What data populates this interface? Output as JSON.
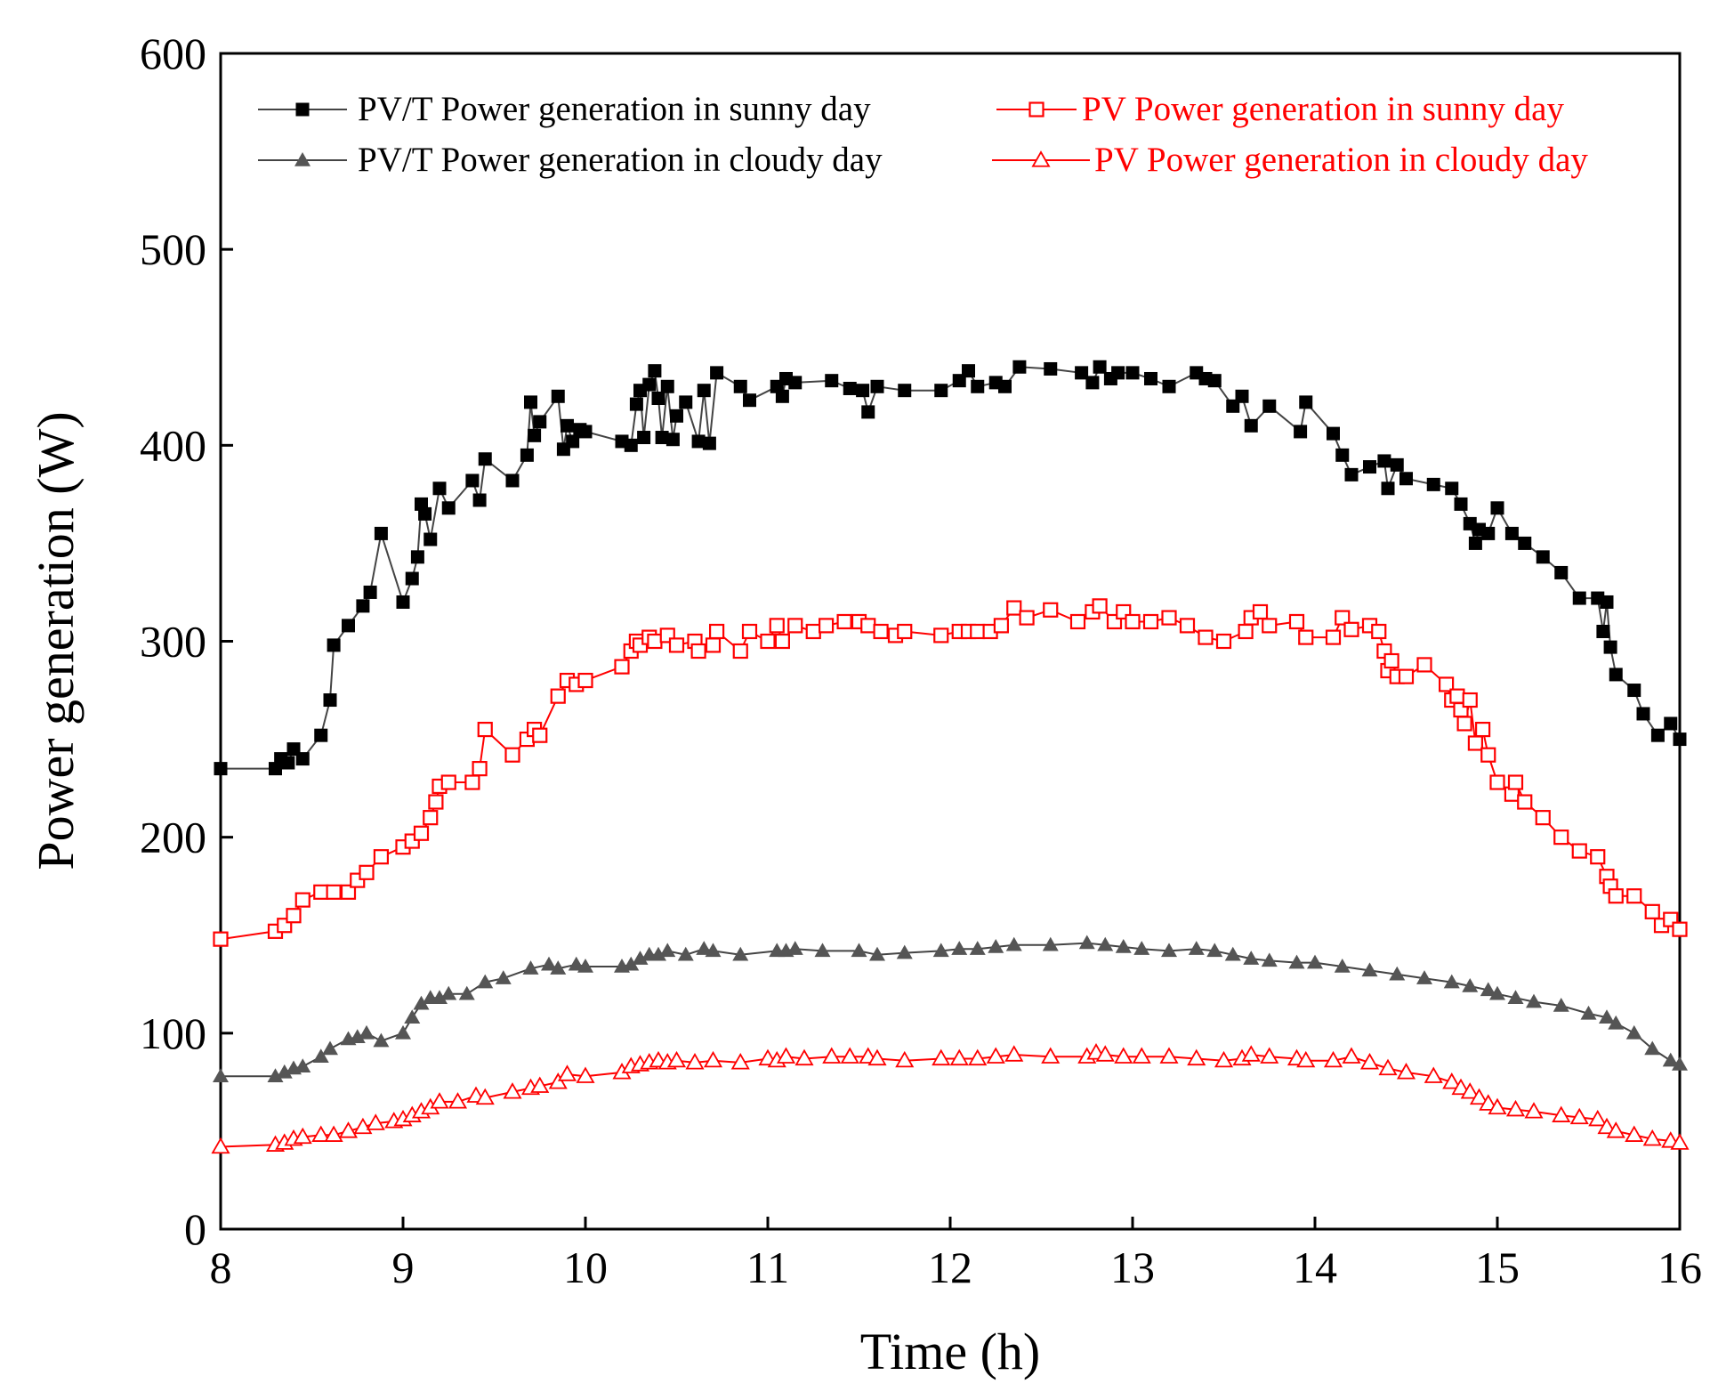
{
  "chart_data": {
    "type": "line",
    "title": "",
    "xlabel": "Time (h)",
    "ylabel": "Power generation (W)",
    "xlim": [
      8,
      16
    ],
    "ylim": [
      0,
      600
    ],
    "xticks": [
      8,
      9,
      10,
      11,
      12,
      13,
      14,
      15,
      16
    ],
    "yticks": [
      0,
      100,
      200,
      300,
      400,
      500,
      600
    ],
    "xtick_labels": [
      "8",
      "9",
      "10",
      "11",
      "12",
      "13",
      "14",
      "15",
      "16"
    ],
    "ytick_labels": [
      "0",
      "100",
      "200",
      "300",
      "400",
      "500",
      "600"
    ],
    "grid": false,
    "legend_position": "top",
    "series": [
      {
        "name": "PV/T Power generation in sunny day",
        "color": "#000000",
        "line_color": "#444444",
        "marker": "filled-square",
        "x": [
          8.0,
          8.3,
          8.33,
          8.37,
          8.4,
          8.45,
          8.55,
          8.6,
          8.62,
          8.7,
          8.78,
          8.82,
          8.88,
          9.0,
          9.05,
          9.08,
          9.1,
          9.12,
          9.15,
          9.2,
          9.25,
          9.38,
          9.42,
          9.45,
          9.6,
          9.68,
          9.7,
          9.72,
          9.75,
          9.85,
          9.88,
          9.9,
          9.93,
          9.97,
          10.0,
          10.2,
          10.25,
          10.28,
          10.3,
          10.32,
          10.35,
          10.38,
          10.4,
          10.42,
          10.45,
          10.48,
          10.5,
          10.55,
          10.62,
          10.65,
          10.68,
          10.72,
          10.85,
          10.9,
          11.05,
          11.08,
          11.1,
          11.15,
          11.35,
          11.45,
          11.52,
          11.55,
          11.6,
          11.75,
          11.95,
          12.05,
          12.1,
          12.15,
          12.25,
          12.3,
          12.38,
          12.55,
          12.72,
          12.78,
          12.82,
          12.88,
          12.92,
          13.0,
          13.1,
          13.2,
          13.35,
          13.4,
          13.45,
          13.55,
          13.6,
          13.65,
          13.75,
          13.92,
          13.95,
          14.1,
          14.15,
          14.2,
          14.3,
          14.38,
          14.4,
          14.45,
          14.5,
          14.65,
          14.75,
          14.8,
          14.85,
          14.88,
          14.9,
          14.95,
          15.0,
          15.08,
          15.15,
          15.25,
          15.35,
          15.45,
          15.55,
          15.58,
          15.6,
          15.62,
          15.65,
          15.75,
          15.8,
          15.88,
          15.95,
          16.0
        ],
        "y": [
          235,
          235,
          240,
          238,
          245,
          240,
          252,
          270,
          298,
          308,
          318,
          325,
          355,
          320,
          332,
          343,
          370,
          365,
          352,
          378,
          368,
          382,
          372,
          393,
          382,
          395,
          422,
          405,
          412,
          425,
          398,
          410,
          402,
          408,
          407,
          402,
          400,
          421,
          428,
          404,
          431,
          438,
          424,
          404,
          430,
          403,
          415,
          422,
          402,
          428,
          401,
          437,
          430,
          423,
          430,
          425,
          434,
          432,
          433,
          429,
          428,
          417,
          430,
          428,
          428,
          433,
          438,
          430,
          432,
          430,
          440,
          439,
          437,
          432,
          440,
          434,
          437,
          437,
          434,
          430,
          437,
          434,
          433,
          420,
          425,
          410,
          420,
          407,
          422,
          406,
          395,
          385,
          389,
          392,
          378,
          390,
          383,
          380,
          378,
          370,
          360,
          350,
          357,
          355,
          368,
          355,
          350,
          343,
          335,
          322,
          322,
          305,
          320,
          297,
          283,
          275,
          263,
          252,
          258,
          250
        ]
      },
      {
        "name": "PV Power generation in sunny day",
        "color": "#ff0000",
        "line_color": "#ff0000",
        "marker": "open-square",
        "x": [
          8.0,
          8.3,
          8.35,
          8.4,
          8.45,
          8.55,
          8.62,
          8.7,
          8.75,
          8.8,
          8.88,
          9.0,
          9.05,
          9.1,
          9.15,
          9.18,
          9.2,
          9.25,
          9.38,
          9.42,
          9.45,
          9.6,
          9.68,
          9.72,
          9.75,
          9.85,
          9.9,
          9.95,
          10.0,
          10.2,
          10.25,
          10.28,
          10.3,
          10.35,
          10.38,
          10.45,
          10.5,
          10.6,
          10.62,
          10.7,
          10.72,
          10.85,
          10.9,
          11.0,
          11.05,
          11.08,
          11.15,
          11.25,
          11.32,
          11.42,
          11.5,
          11.55,
          11.62,
          11.7,
          11.75,
          11.95,
          12.05,
          12.1,
          12.15,
          12.22,
          12.28,
          12.35,
          12.42,
          12.55,
          12.7,
          12.78,
          12.82,
          12.9,
          12.95,
          13.0,
          13.1,
          13.2,
          13.3,
          13.4,
          13.5,
          13.62,
          13.65,
          13.7,
          13.75,
          13.9,
          13.95,
          14.1,
          14.15,
          14.2,
          14.3,
          14.35,
          14.38,
          14.4,
          14.42,
          14.45,
          14.5,
          14.6,
          14.72,
          14.75,
          14.78,
          14.8,
          14.82,
          14.85,
          14.88,
          14.92,
          14.95,
          15.0,
          15.08,
          15.1,
          15.15,
          15.25,
          15.35,
          15.45,
          15.55,
          15.6,
          15.62,
          15.65,
          15.75,
          15.85,
          15.9,
          15.95,
          16.0
        ],
        "y": [
          148,
          152,
          155,
          160,
          168,
          172,
          172,
          172,
          178,
          182,
          190,
          195,
          198,
          202,
          210,
          218,
          226,
          228,
          228,
          235,
          255,
          242,
          250,
          255,
          252,
          272,
          280,
          278,
          280,
          287,
          295,
          300,
          298,
          302,
          300,
          303,
          298,
          300,
          295,
          298,
          305,
          295,
          305,
          300,
          308,
          300,
          308,
          305,
          308,
          310,
          310,
          308,
          305,
          303,
          305,
          303,
          305,
          305,
          305,
          305,
          308,
          317,
          312,
          316,
          310,
          315,
          318,
          310,
          315,
          310,
          310,
          312,
          308,
          302,
          300,
          305,
          312,
          315,
          308,
          310,
          302,
          302,
          312,
          306,
          308,
          305,
          295,
          285,
          290,
          282,
          282,
          288,
          278,
          270,
          272,
          265,
          258,
          270,
          248,
          255,
          242,
          228,
          222,
          228,
          218,
          210,
          200,
          193,
          190,
          180,
          175,
          170,
          170,
          162,
          155,
          158,
          153
        ]
      },
      {
        "name": "PV/T Power generation in cloudy day",
        "color": "#555555",
        "line_color": "#444444",
        "marker": "filled-triangle",
        "x": [
          8.0,
          8.3,
          8.35,
          8.4,
          8.45,
          8.55,
          8.6,
          8.7,
          8.75,
          8.8,
          8.88,
          9.0,
          9.05,
          9.1,
          9.15,
          9.2,
          9.25,
          9.35,
          9.45,
          9.55,
          9.7,
          9.8,
          9.85,
          9.95,
          10.0,
          10.2,
          10.25,
          10.3,
          10.35,
          10.4,
          10.45,
          10.55,
          10.65,
          10.7,
          10.85,
          11.05,
          11.1,
          11.15,
          11.3,
          11.5,
          11.6,
          11.75,
          11.95,
          12.05,
          12.15,
          12.25,
          12.35,
          12.55,
          12.75,
          12.85,
          12.95,
          13.05,
          13.2,
          13.35,
          13.45,
          13.55,
          13.65,
          13.75,
          13.9,
          14.0,
          14.15,
          14.3,
          14.45,
          14.6,
          14.75,
          14.85,
          14.95,
          15.0,
          15.1,
          15.2,
          15.35,
          15.5,
          15.6,
          15.65,
          15.75,
          15.85,
          15.95,
          16.0
        ],
        "y": [
          78,
          78,
          80,
          82,
          83,
          88,
          92,
          97,
          98,
          100,
          96,
          100,
          108,
          115,
          118,
          118,
          120,
          120,
          126,
          128,
          133,
          135,
          133,
          135,
          134,
          134,
          135,
          138,
          140,
          140,
          142,
          140,
          143,
          142,
          140,
          142,
          142,
          143,
          142,
          142,
          140,
          141,
          142,
          143,
          143,
          144,
          145,
          145,
          146,
          145,
          144,
          143,
          142,
          143,
          142,
          140,
          138,
          137,
          136,
          136,
          134,
          132,
          130,
          128,
          126,
          124,
          122,
          120,
          118,
          116,
          114,
          110,
          108,
          105,
          100,
          92,
          86,
          84
        ]
      },
      {
        "name": "PV Power generation in cloudy day",
        "color": "#ff0000",
        "line_color": "#ff0000",
        "marker": "open-triangle",
        "x": [
          8.0,
          8.3,
          8.35,
          8.4,
          8.45,
          8.55,
          8.62,
          8.7,
          8.78,
          8.85,
          8.95,
          9.0,
          9.05,
          9.1,
          9.15,
          9.2,
          9.3,
          9.4,
          9.45,
          9.6,
          9.7,
          9.75,
          9.85,
          9.9,
          10.0,
          10.2,
          10.25,
          10.3,
          10.35,
          10.4,
          10.45,
          10.5,
          10.6,
          10.7,
          10.85,
          11.0,
          11.05,
          11.1,
          11.2,
          11.35,
          11.45,
          11.55,
          11.6,
          11.75,
          11.95,
          12.05,
          12.15,
          12.25,
          12.35,
          12.55,
          12.75,
          12.8,
          12.85,
          12.95,
          13.05,
          13.2,
          13.35,
          13.5,
          13.6,
          13.65,
          13.75,
          13.9,
          13.95,
          14.1,
          14.2,
          14.3,
          14.4,
          14.5,
          14.65,
          14.75,
          14.8,
          14.85,
          14.9,
          14.95,
          15.0,
          15.1,
          15.2,
          15.35,
          15.45,
          15.55,
          15.6,
          15.65,
          15.75,
          15.85,
          15.95,
          16.0
        ],
        "y": [
          42,
          43,
          44,
          46,
          47,
          48,
          48,
          50,
          52,
          54,
          55,
          56,
          58,
          60,
          62,
          65,
          65,
          68,
          67,
          70,
          72,
          73,
          75,
          79,
          78,
          80,
          83,
          84,
          85,
          86,
          85,
          86,
          85,
          86,
          85,
          87,
          86,
          88,
          87,
          88,
          88,
          88,
          87,
          86,
          87,
          87,
          87,
          88,
          89,
          88,
          88,
          90,
          89,
          88,
          88,
          88,
          87,
          86,
          87,
          89,
          88,
          87,
          86,
          86,
          88,
          85,
          82,
          80,
          78,
          75,
          72,
          70,
          67,
          64,
          62,
          61,
          60,
          58,
          57,
          56,
          52,
          50,
          48,
          46,
          45,
          44
        ]
      }
    ]
  }
}
